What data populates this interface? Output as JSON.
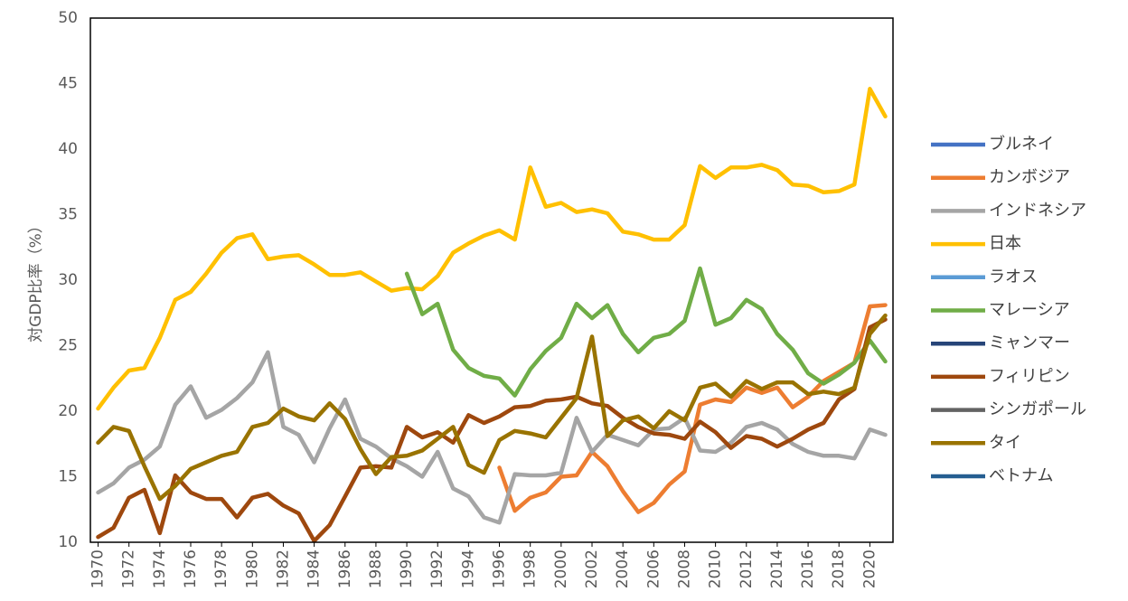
{
  "chart_data": {
    "type": "line",
    "y_label": "対GDP比率（%）",
    "x": [
      1970,
      1971,
      1972,
      1973,
      1974,
      1975,
      1976,
      1977,
      1978,
      1979,
      1980,
      1981,
      1982,
      1983,
      1984,
      1985,
      1986,
      1987,
      1988,
      1989,
      1990,
      1991,
      1992,
      1993,
      1994,
      1995,
      1996,
      1997,
      1998,
      1999,
      2000,
      2001,
      2002,
      2003,
      2004,
      2005,
      2006,
      2007,
      2008,
      2009,
      2010,
      2011,
      2012,
      2013,
      2014,
      2015,
      2016,
      2017,
      2018,
      2019,
      2020,
      2021
    ],
    "xlim": [
      1969.5,
      2021.5
    ],
    "xticks": [
      1970,
      1972,
      1974,
      1976,
      1978,
      1980,
      1982,
      1984,
      1986,
      1988,
      1990,
      1992,
      1994,
      1996,
      1998,
      2000,
      2002,
      2004,
      2006,
      2008,
      2010,
      2012,
      2014,
      2016,
      2018,
      2020
    ],
    "ylim": [
      10,
      50
    ],
    "yticks": [
      10,
      15,
      20,
      25,
      30,
      35,
      40,
      45,
      50
    ],
    "grid": false,
    "legend": "right",
    "series": [
      {
        "name": "ブルネイ",
        "color": "#4472c4",
        "values": [
          null,
          null,
          null,
          null,
          null,
          null,
          null,
          null,
          null,
          null,
          null,
          null,
          null,
          null,
          null,
          null,
          null,
          null,
          null,
          null,
          null,
          null,
          null,
          null,
          null,
          null,
          null,
          null,
          null,
          null,
          null,
          null,
          null,
          null,
          null,
          null,
          null,
          null,
          null,
          null,
          null,
          null,
          null,
          null,
          null,
          null,
          null,
          null,
          null,
          null,
          null,
          null
        ]
      },
      {
        "name": "カンボジア",
        "color": "#ed7d31",
        "values": [
          null,
          null,
          null,
          null,
          null,
          null,
          null,
          null,
          null,
          null,
          null,
          null,
          null,
          null,
          null,
          null,
          null,
          null,
          null,
          null,
          null,
          null,
          null,
          null,
          null,
          null,
          15.7,
          12.4,
          13.4,
          13.8,
          15.0,
          15.1,
          16.9,
          15.8,
          13.9,
          12.3,
          13.0,
          14.4,
          15.4,
          20.5,
          20.9,
          20.7,
          21.8,
          21.4,
          21.8,
          20.3,
          21.1,
          22.3,
          23.0,
          23.7,
          28.0,
          28.1
        ]
      },
      {
        "name": "インドネシア",
        "color": "#a5a5a5",
        "values": [
          13.8,
          14.5,
          15.7,
          16.3,
          17.3,
          20.5,
          21.9,
          19.5,
          20.1,
          21.0,
          22.2,
          24.5,
          18.8,
          18.2,
          16.1,
          18.7,
          20.9,
          17.9,
          17.3,
          16.4,
          15.8,
          15.0,
          16.9,
          14.1,
          13.5,
          11.9,
          11.5,
          15.2,
          15.1,
          15.1,
          15.3,
          19.5,
          16.9,
          18.2,
          17.8,
          17.4,
          18.6,
          18.7,
          19.5,
          17.0,
          16.9,
          17.6,
          18.8,
          19.1,
          18.6,
          17.5,
          16.9,
          16.6,
          16.6,
          16.4,
          18.6,
          18.2
        ]
      },
      {
        "name": "日本",
        "color": "#ffc000",
        "values": [
          20.2,
          21.8,
          23.1,
          23.3,
          25.6,
          28.5,
          29.1,
          30.5,
          32.1,
          33.2,
          33.5,
          31.6,
          31.8,
          31.9,
          31.2,
          30.4,
          30.4,
          30.6,
          29.9,
          29.2,
          29.4,
          29.3,
          30.3,
          32.1,
          32.8,
          33.4,
          33.8,
          33.1,
          38.6,
          35.6,
          35.9,
          35.2,
          35.4,
          35.1,
          33.7,
          33.5,
          33.1,
          33.1,
          34.2,
          38.7,
          37.8,
          38.6,
          38.6,
          38.8,
          38.4,
          37.3,
          37.2,
          36.7,
          36.8,
          37.3,
          44.6,
          42.5
        ]
      },
      {
        "name": "ラオス",
        "color": "#5b9bd5",
        "values": [
          null,
          null,
          null,
          null,
          null,
          null,
          null,
          null,
          null,
          null,
          null,
          null,
          null,
          null,
          null,
          null,
          null,
          null,
          null,
          null,
          null,
          null,
          null,
          null,
          null,
          null,
          null,
          null,
          null,
          null,
          null,
          null,
          null,
          null,
          null,
          null,
          null,
          null,
          null,
          null,
          null,
          null,
          null,
          null,
          null,
          null,
          null,
          null,
          null,
          null,
          null,
          null
        ]
      },
      {
        "name": "マレーシア",
        "color": "#70ad47",
        "values": [
          null,
          null,
          null,
          null,
          null,
          null,
          null,
          null,
          null,
          null,
          null,
          null,
          null,
          null,
          null,
          null,
          null,
          null,
          null,
          null,
          30.5,
          27.4,
          28.2,
          24.7,
          23.3,
          22.7,
          22.5,
          21.2,
          23.2,
          24.6,
          25.6,
          28.2,
          27.1,
          28.1,
          25.9,
          24.5,
          25.6,
          25.9,
          26.9,
          30.9,
          26.6,
          27.1,
          28.5,
          27.8,
          25.9,
          24.7,
          22.9,
          22.1,
          22.8,
          23.7,
          25.4,
          23.8
        ]
      },
      {
        "name": "ミャンマー",
        "color": "#264478",
        "values": [
          null,
          null,
          null,
          null,
          null,
          null,
          null,
          null,
          null,
          null,
          null,
          null,
          null,
          null,
          null,
          null,
          null,
          null,
          null,
          null,
          null,
          null,
          null,
          null,
          null,
          null,
          null,
          null,
          null,
          null,
          null,
          null,
          null,
          null,
          null,
          null,
          null,
          null,
          null,
          null,
          null,
          null,
          null,
          null,
          null,
          null,
          null,
          null,
          null,
          null,
          null,
          null
        ]
      },
      {
        "name": "フィリピン",
        "color": "#9e480e",
        "values": [
          10.4,
          11.1,
          13.4,
          14.0,
          10.7,
          15.1,
          13.8,
          13.3,
          13.3,
          11.9,
          13.4,
          13.7,
          12.8,
          12.2,
          10.1,
          11.3,
          13.5,
          15.7,
          15.8,
          15.7,
          18.8,
          18.0,
          18.4,
          17.6,
          19.7,
          19.1,
          19.6,
          20.3,
          20.4,
          20.8,
          20.9,
          21.1,
          20.6,
          20.4,
          19.5,
          18.8,
          18.3,
          18.2,
          17.9,
          19.2,
          18.4,
          17.2,
          18.1,
          17.9,
          17.3,
          17.9,
          18.6,
          19.1,
          20.9,
          21.7,
          26.4,
          27.0
        ]
      },
      {
        "name": "シンガポール",
        "color": "#636363",
        "values": [
          null,
          null,
          null,
          null,
          null,
          null,
          null,
          null,
          null,
          null,
          null,
          null,
          null,
          null,
          null,
          null,
          null,
          null,
          null,
          null,
          null,
          null,
          null,
          null,
          null,
          null,
          null,
          null,
          null,
          null,
          null,
          null,
          null,
          null,
          null,
          null,
          null,
          null,
          null,
          null,
          null,
          null,
          null,
          null,
          null,
          null,
          null,
          null,
          null,
          null,
          null,
          null
        ]
      },
      {
        "name": "タイ",
        "color": "#997300",
        "values": [
          17.6,
          18.8,
          18.5,
          15.8,
          13.3,
          14.3,
          15.6,
          16.1,
          16.6,
          16.9,
          18.8,
          19.1,
          20.2,
          19.6,
          19.3,
          20.6,
          19.4,
          17.1,
          15.2,
          16.5,
          16.6,
          17.0,
          17.9,
          18.8,
          15.9,
          15.3,
          17.8,
          18.5,
          18.3,
          18.0,
          19.5,
          21.0,
          25.7,
          18.1,
          19.3,
          19.6,
          18.7,
          20.0,
          19.3,
          21.8,
          22.1,
          21.1,
          22.3,
          21.7,
          22.2,
          22.2,
          21.3,
          21.5,
          21.3,
          21.8,
          25.9,
          27.3
        ]
      },
      {
        "name": "ベトナム",
        "color": "#255e91",
        "values": [
          null,
          null,
          null,
          null,
          null,
          null,
          null,
          null,
          null,
          null,
          null,
          null,
          null,
          null,
          null,
          null,
          null,
          null,
          null,
          null,
          null,
          null,
          null,
          null,
          null,
          null,
          null,
          null,
          null,
          null,
          null,
          null,
          null,
          null,
          null,
          null,
          null,
          null,
          null,
          null,
          null,
          null,
          null,
          null,
          null,
          null,
          null,
          null,
          null,
          null,
          null,
          null
        ]
      }
    ]
  }
}
